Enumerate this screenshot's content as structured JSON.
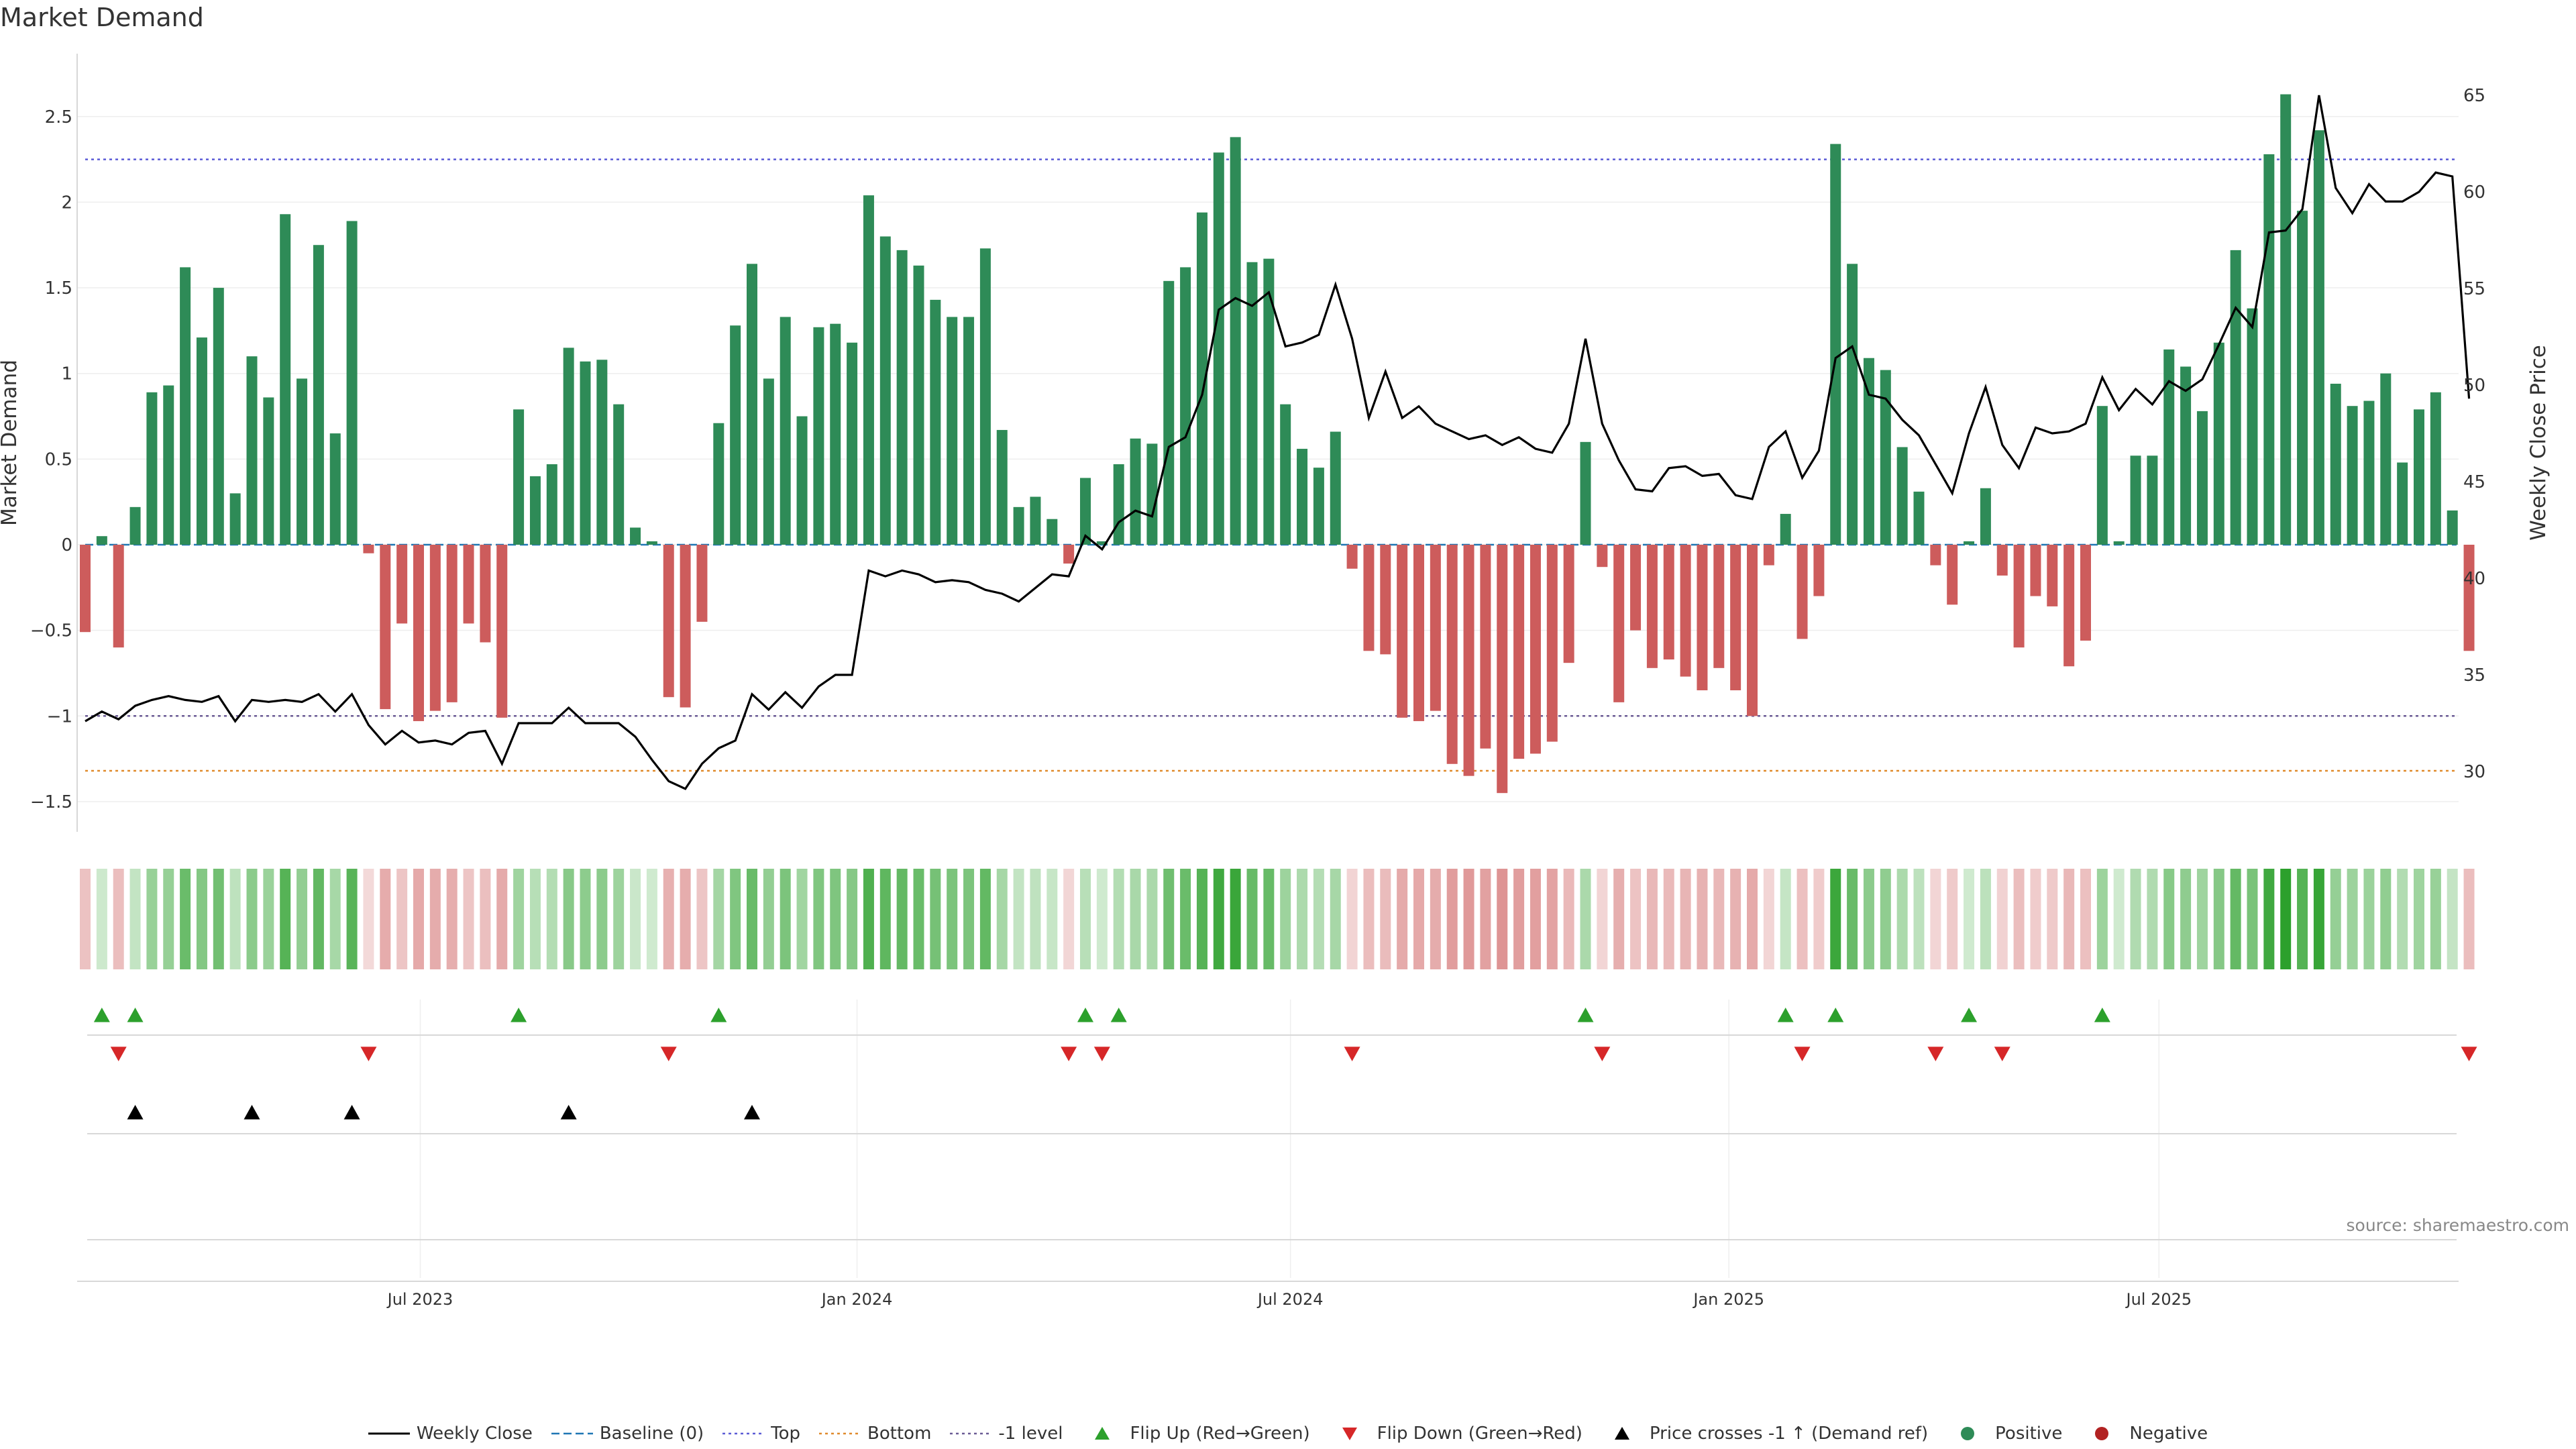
{
  "chart_data": {
    "type": "bar",
    "title": "Market Demand",
    "ylabel": "Market Demand",
    "y2label": "Weekly Close Price",
    "source": "source: sharemaestro.com",
    "ylim": [
      -1.65,
      2.9
    ],
    "y2lim": [
      25.7,
      67
    ],
    "yticks": [
      -1.5,
      -1,
      -0.5,
      0,
      0.5,
      1,
      1.5,
      2,
      2.5
    ],
    "ytick_labels": [
      "−1.5",
      "−1",
      "−0.5",
      "0",
      "0.5",
      "1",
      "1.5",
      "2",
      "2.5"
    ],
    "y2ticks": [
      30,
      35,
      40,
      45,
      50,
      55,
      60,
      65
    ],
    "x_dates": {
      "start": "2023-01-06",
      "frequency": "weekly",
      "count": 144
    },
    "xticks": [
      {
        "label": "Jul 2023",
        "week": 20.1
      },
      {
        "label": "Jan 2024",
        "week": 46.3
      },
      {
        "label": "Jul 2024",
        "week": 72.3
      },
      {
        "label": "Jan 2025",
        "week": 98.6
      },
      {
        "label": "Jul 2025",
        "week": 124.4
      }
    ],
    "reference_lines": {
      "top": 2.25,
      "bottom": -1.32,
      "minus_one": -1,
      "baseline": 0
    },
    "series": [
      {
        "name": "Market Demand",
        "type": "bar",
        "values": [
          -0.51,
          0.05,
          -0.6,
          0.22,
          0.89,
          0.93,
          1.62,
          1.21,
          1.5,
          0.3,
          1.1,
          0.86,
          1.93,
          0.97,
          1.75,
          0.65,
          1.89,
          -0.05,
          -0.96,
          -0.46,
          -1.03,
          -0.97,
          -0.92,
          -0.46,
          -0.57,
          -1.01,
          0.79,
          0.4,
          0.47,
          1.15,
          1.07,
          1.08,
          0.82,
          0.1,
          0.02,
          -0.89,
          -0.95,
          -0.45,
          0.71,
          1.28,
          1.64,
          0.97,
          1.33,
          0.75,
          1.27,
          1.29,
          1.18,
          2.04,
          1.8,
          1.72,
          1.63,
          1.43,
          1.33,
          1.33,
          1.73,
          0.67,
          0.22,
          0.28,
          0.15,
          -0.11,
          0.39,
          0.02,
          0.47,
          0.62,
          0.59,
          1.54,
          1.62,
          1.94,
          2.29,
          2.38,
          1.65,
          1.67,
          0.82,
          0.56,
          0.45,
          0.66,
          -0.14,
          -0.62,
          -0.64,
          -1.01,
          -1.03,
          -0.97,
          -1.28,
          -1.35,
          -1.19,
          -1.45,
          -1.25,
          -1.22,
          -1.15,
          -0.69,
          0.6,
          -0.13,
          -0.92,
          -0.5,
          -0.72,
          -0.67,
          -0.77,
          -0.85,
          -0.72,
          -0.85,
          -1.0,
          -0.12,
          0.18,
          -0.55,
          -0.3,
          2.34,
          1.64,
          1.09,
          1.02,
          0.57,
          0.31,
          -0.12,
          -0.35,
          0.02,
          0.33,
          -0.18,
          -0.6,
          -0.3,
          -0.36,
          -0.71,
          -0.56,
          0.81,
          0.02,
          0.52,
          0.52,
          1.14,
          1.04,
          0.78,
          1.18,
          1.72,
          1.38,
          2.28,
          2.63,
          1.95,
          2.42,
          0.94,
          0.81,
          0.84,
          1.0,
          0.48,
          0.79,
          0.89,
          0.2,
          -0.62
        ]
      },
      {
        "name": "Weekly Close",
        "type": "line",
        "values": [
          32.6,
          33.1,
          32.7,
          33.4,
          33.7,
          33.9,
          33.7,
          33.6,
          33.9,
          32.6,
          33.7,
          33.6,
          33.7,
          33.6,
          34.0,
          33.1,
          34.0,
          32.4,
          31.4,
          32.1,
          31.5,
          31.6,
          31.4,
          32.0,
          32.1,
          30.4,
          32.5,
          32.5,
          32.5,
          33.3,
          32.5,
          32.5,
          32.5,
          31.8,
          30.6,
          29.5,
          29.1,
          30.4,
          31.2,
          31.6,
          34.0,
          33.2,
          34.1,
          33.3,
          34.4,
          35.0,
          35.0,
          40.4,
          40.1,
          40.4,
          40.2,
          39.8,
          39.9,
          39.8,
          39.4,
          39.2,
          38.8,
          39.5,
          40.2,
          40.1,
          42.2,
          41.5,
          42.9,
          43.5,
          43.2,
          46.8,
          47.3,
          49.5,
          53.9,
          54.5,
          54.1,
          54.8,
          52.0,
          52.2,
          52.6,
          55.2,
          52.4,
          48.3,
          50.7,
          48.3,
          48.9,
          48.0,
          47.6,
          47.2,
          47.4,
          46.9,
          47.3,
          46.7,
          46.5,
          48.0,
          52.4,
          48.0,
          46.1,
          44.6,
          44.5,
          45.7,
          45.8,
          45.3,
          45.4,
          44.3,
          44.1,
          46.8,
          47.6,
          45.2,
          46.6,
          51.4,
          52.0,
          49.5,
          49.3,
          48.2,
          47.4,
          45.9,
          44.4,
          47.5,
          49.9,
          46.9,
          45.7,
          47.8,
          47.5,
          47.6,
          48.0,
          50.4,
          48.7,
          49.8,
          49.0,
          50.2,
          49.7,
          50.3,
          52.1,
          54.0,
          53.0,
          57.9,
          58.0,
          59.1,
          65.0,
          60.2,
          58.9,
          60.4,
          59.5,
          59.5,
          60.0,
          61.0,
          60.8,
          49.3
        ]
      }
    ],
    "markers": {
      "flip_up_weeks": [
        1,
        3,
        26,
        38,
        60,
        62,
        90,
        102,
        105,
        113,
        121
      ],
      "flip_down_weeks": [
        2,
        17,
        35,
        59,
        61,
        76,
        91,
        103,
        111,
        115,
        143
      ],
      "price_cross_weeks": [
        3,
        10,
        16,
        29,
        40
      ]
    },
    "legend": [
      {
        "label": "Weekly Close",
        "kind": "line",
        "color": "#000000"
      },
      {
        "label": "Baseline (0)",
        "kind": "dash",
        "color": "#1f77b4"
      },
      {
        "label": "Top",
        "kind": "dot",
        "color": "#5b5bd6"
      },
      {
        "label": "Bottom",
        "kind": "dot",
        "color": "#e08a2c"
      },
      {
        "label": "-1 level",
        "kind": "dot",
        "color": "#6b5b95"
      },
      {
        "label": "Flip Up (Red→Green)",
        "kind": "triangle-up",
        "color": "#2ca02c"
      },
      {
        "label": "Flip Down (Green→Red)",
        "kind": "triangle-down",
        "color": "#d62728"
      },
      {
        "label": "Price crosses -1 ↑ (Demand ref)",
        "kind": "triangle-up",
        "color": "#000000"
      },
      {
        "label": "Positive",
        "kind": "circle",
        "color": "#2e8b57"
      },
      {
        "label": "Negative",
        "kind": "circle",
        "color": "#b22222"
      }
    ],
    "colors": {
      "positive": "#2e8b57",
      "negative": "#cd5c5c",
      "heat_positive": "#2ca02c",
      "heat_negative": "#cd5c5c",
      "price": "#000000",
      "top_line": "#5b5bd6",
      "bottom_line": "#e08a2c",
      "minus_one_line": "#6b5b95",
      "baseline": "#1f77b4"
    }
  }
}
